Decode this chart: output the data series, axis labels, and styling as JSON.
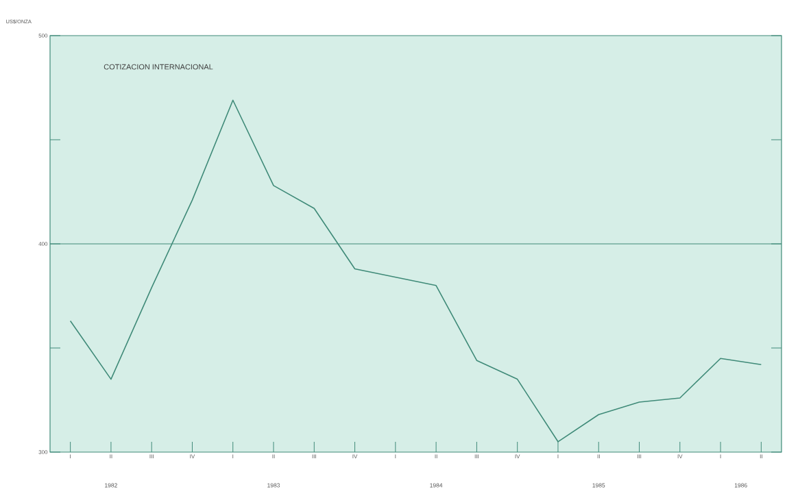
{
  "chart_data": {
    "type": "line",
    "title": "COTIZACION INTERNACIONAL",
    "ylabel": "US$/ONZA",
    "categories": [
      "I",
      "II",
      "III",
      "IV",
      "I",
      "II",
      "III",
      "IV",
      "I",
      "II",
      "III",
      "IV",
      "I",
      "II",
      "III",
      "IV",
      "I",
      "II"
    ],
    "series": [
      {
        "color": "#3f8a78",
        "values": [
          363,
          335,
          379,
          421,
          469,
          428,
          417,
          388,
          384,
          380,
          344,
          335,
          305,
          318,
          324,
          326,
          345,
          342
        ]
      }
    ],
    "ylim": [
      300,
      500
    ],
    "yticks": [
      300,
      {
        "value": 350,
        "label": null
      },
      400,
      {
        "value": 450,
        "label": null
      },
      500
    ],
    "ref_lines": [
      {
        "axis": "y",
        "value": 400,
        "color": "#3f8a78"
      }
    ],
    "annotations": [
      "1982",
      "1983",
      "1984",
      "1985",
      "1986"
    ],
    "marker": "none",
    "line_style": "solid"
  }
}
